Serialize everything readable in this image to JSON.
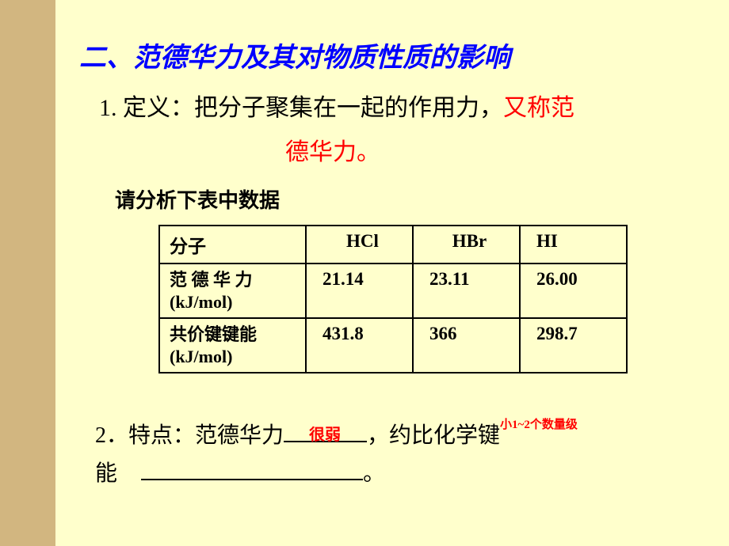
{
  "sidebar_color": "#d2b680",
  "content_bg": "#ffffcc",
  "heading_color": "#0000ff",
  "heading": "二、范德华力及其对物质性质的影响",
  "def": {
    "label": "1. 定义：",
    "body": "把分子聚集在一起的作用力，",
    "red1": "又称范",
    "red2": "德华力。"
  },
  "analyze": "请分析下表中数据",
  "table": {
    "h1": "分子",
    "h2": "HCl",
    "h3": "HBr",
    "h4": "HI",
    "r1_label_a": "范 德 华 力",
    "r1_label_b": "(kJ/mol)",
    "r1_v1": "21.14",
    "r1_v2": "23.11",
    "r1_v3": "26.00",
    "r2_label_a": "共价键键能",
    "r2_label_b": "(kJ/mol)",
    "r2_v1": "431.8",
    "r2_v2": "366",
    "r2_v3": "298.7"
  },
  "point2": {
    "prefix": "2．特点：范德华力",
    "mid": "，约比化学键",
    "suffix": "能",
    "period": "。",
    "ans1": "很弱",
    "ans2": "小1~2个数量级"
  }
}
